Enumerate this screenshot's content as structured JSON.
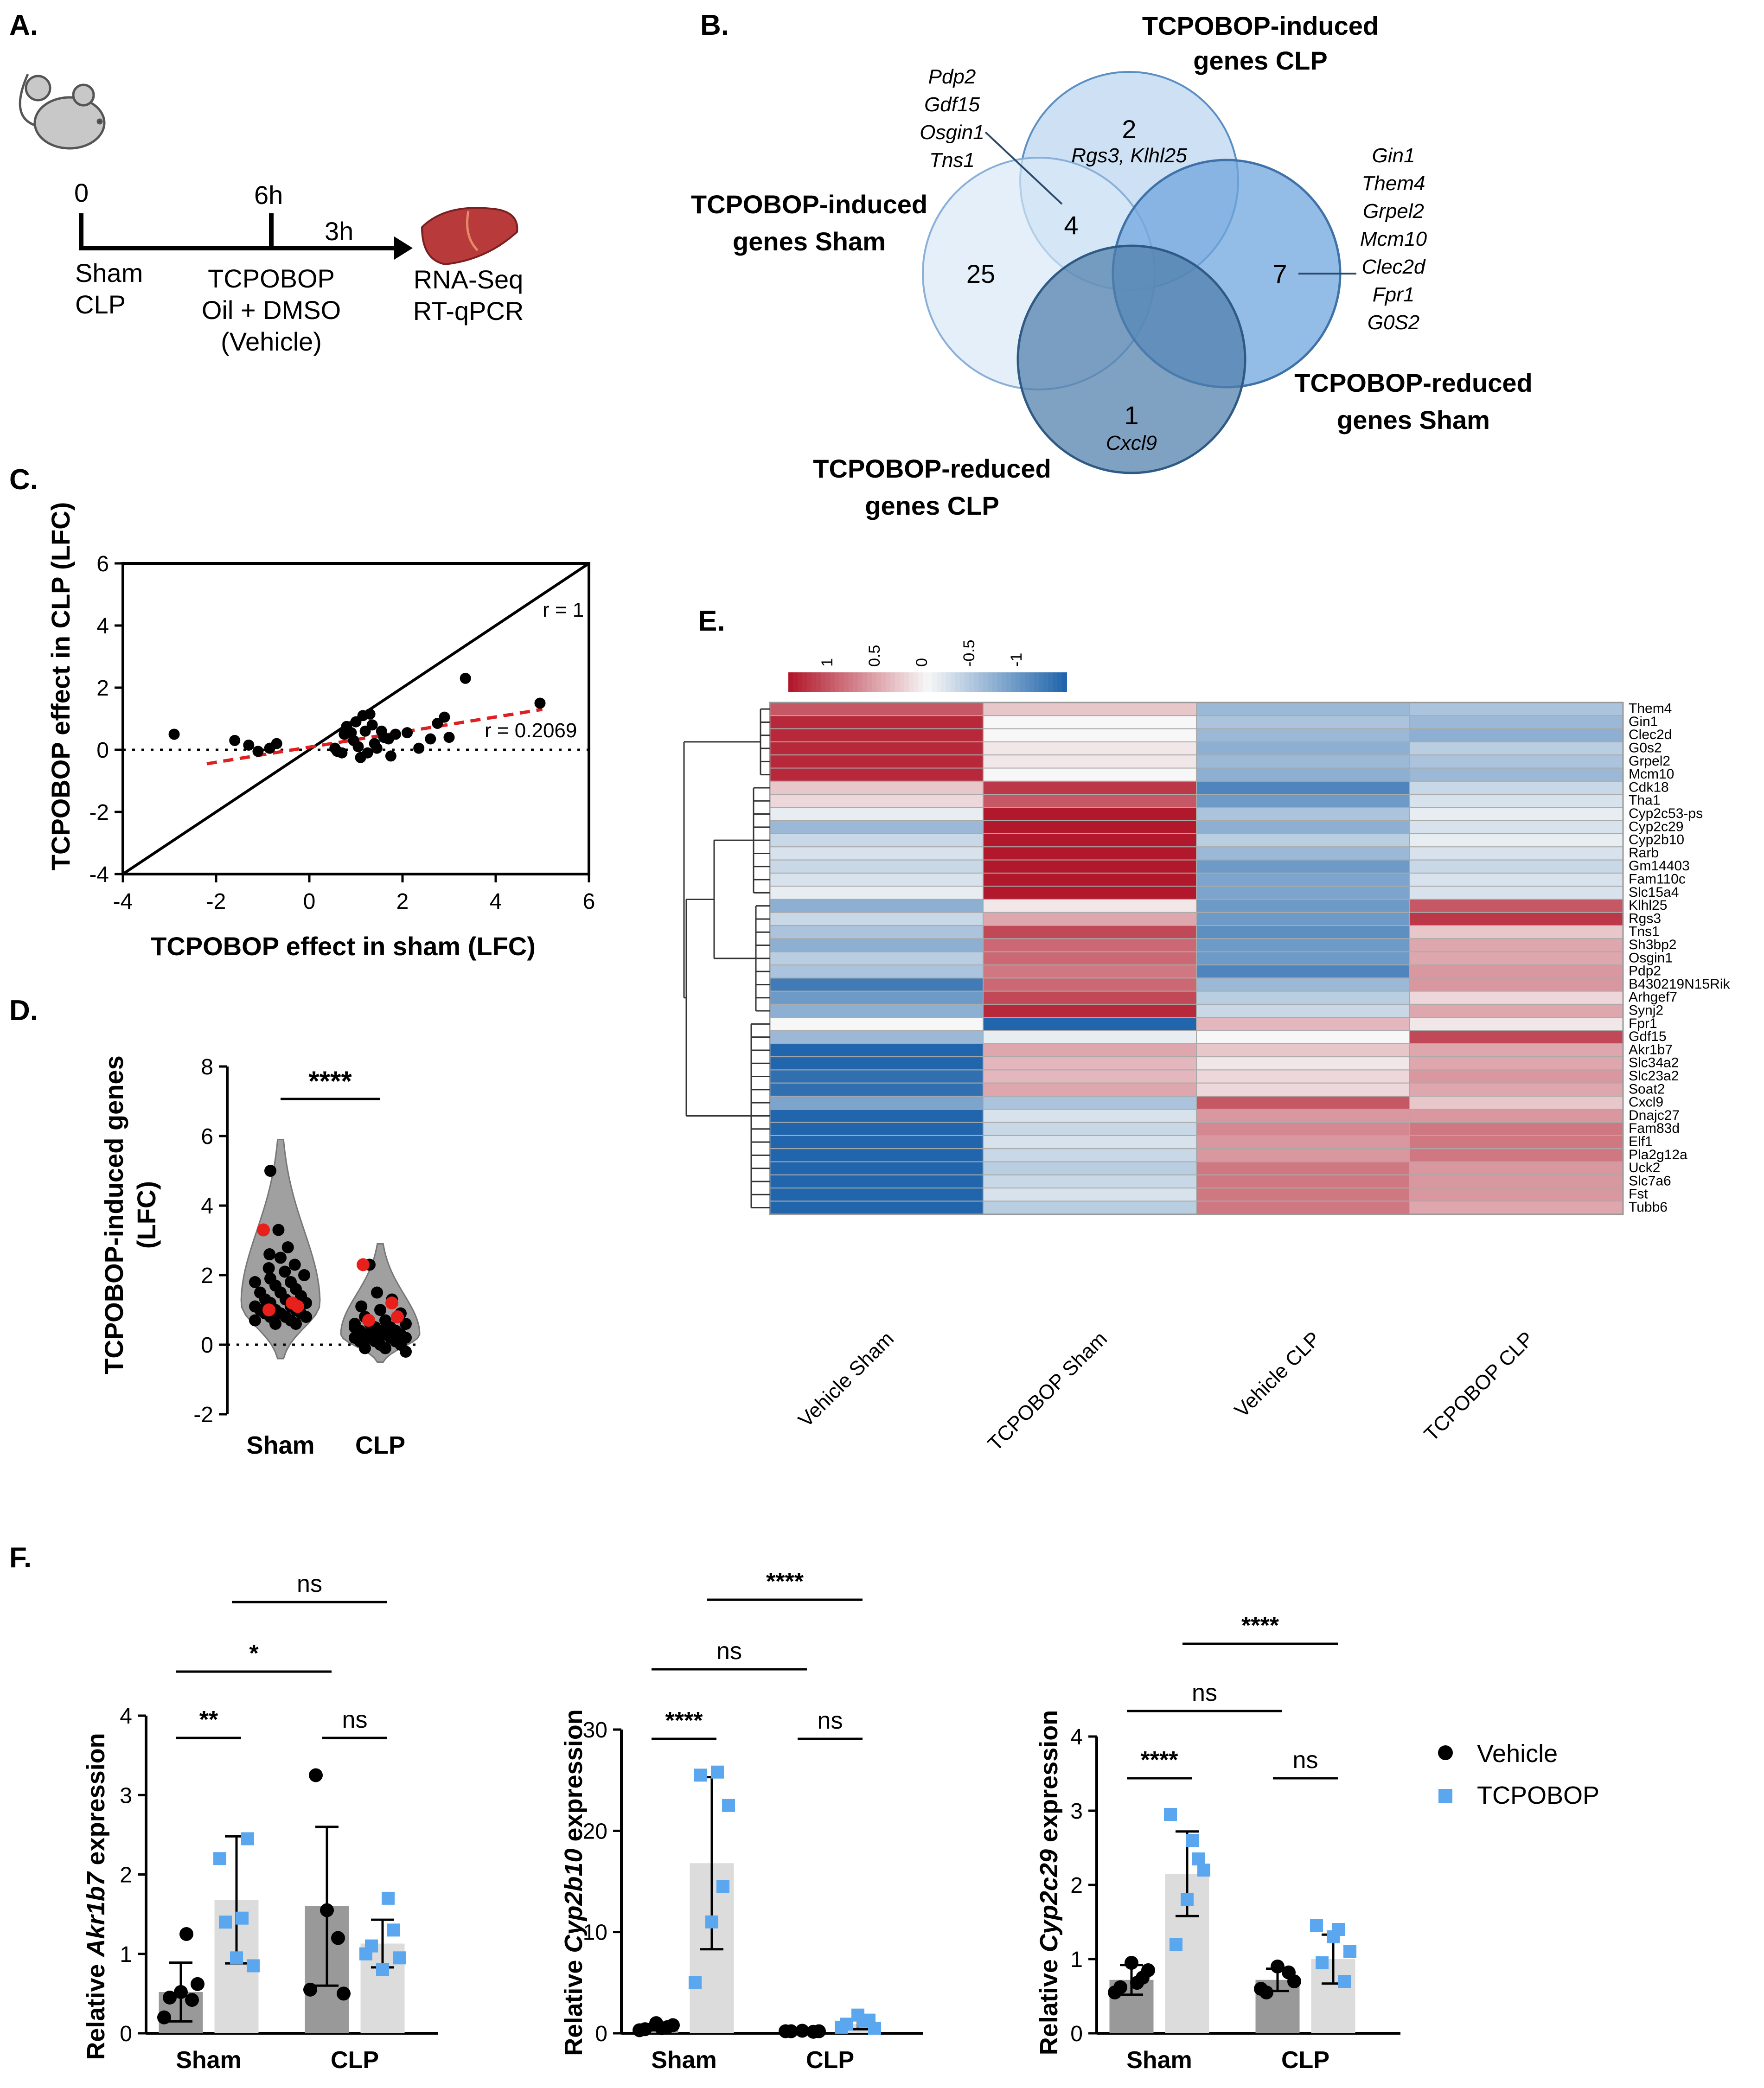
{
  "panels": {
    "A": {
      "letter": "A.",
      "t0": "0",
      "t6": "6h",
      "t3": "3h",
      "sham": "Sham",
      "clp": "CLP",
      "treat1": "TCPOBOP",
      "treat2": "Oil + DMSO",
      "treat3": "(Vehicle)",
      "out1": "RNA-Seq",
      "out2": "RT-qPCR"
    },
    "B": {
      "letter": "B.",
      "sets": [
        {
          "name": "TCPOBOP-induced genes CLP",
          "line1": "TCPOBOP-induced",
          "line2": "genes CLP"
        },
        {
          "name": "TCPOBOP-induced genes Sham",
          "line1": "TCPOBOP-induced",
          "line2": "genes Sham"
        },
        {
          "name": "TCPOBOP-reduced genes Sham",
          "line1": "TCPOBOP-reduced",
          "line2": "genes Sham"
        },
        {
          "name": "TCPOBOP-reduced genes CLP",
          "line1": "TCPOBOP-reduced",
          "line2": "genes CLP"
        }
      ],
      "counts": {
        "induced_clp_only": "2",
        "induced_both": "4",
        "induced_sham_only": "25",
        "reduced_sham": "7",
        "reduced_clp": "1"
      },
      "genes_clp_only": "Rgs3, Klhl25",
      "genes_both": [
        "Pdp2",
        "Gdf15",
        "Osgin1",
        "Tns1"
      ],
      "genes_reduced_sham": [
        "Gin1",
        "Them4",
        "Grpel2",
        "Mcm10",
        "Clec2d",
        "Fpr1",
        "G0S2"
      ],
      "genes_reduced_clp": "Cxcl9"
    },
    "C": {
      "letter": "C."
    },
    "D": {
      "letter": "D."
    },
    "E": {
      "letter": "E."
    },
    "F": {
      "letter": "F."
    }
  },
  "chart_data": [
    {
      "id": "C",
      "type": "scatter",
      "xlabel": "TCPOBOP effect in sham (LFC)",
      "ylabel": "TCPOBOP effect in CLP (LFC)",
      "xlim": [
        -4,
        6
      ],
      "ylim": [
        -4,
        6
      ],
      "xticks": [
        "-4",
        "-2",
        "0",
        "2",
        "4",
        "6"
      ],
      "yticks": [
        "-4",
        "-2",
        "0",
        "2",
        "4",
        "6"
      ],
      "identity_label": "r = 1",
      "fit_label": "r = 0.2069",
      "fit_line": [
        [
          -2.2,
          -0.45
        ],
        [
          5.0,
          1.3
        ]
      ],
      "points": [
        [
          -2.9,
          0.5
        ],
        [
          -1.6,
          0.3
        ],
        [
          -1.3,
          0.15
        ],
        [
          -1.1,
          -0.05
        ],
        [
          -0.85,
          0.05
        ],
        [
          -0.7,
          0.2
        ],
        [
          0.55,
          0.05
        ],
        [
          0.6,
          -0.05
        ],
        [
          0.7,
          -0.1
        ],
        [
          0.75,
          0.5
        ],
        [
          0.8,
          0.75
        ],
        [
          0.9,
          0.55
        ],
        [
          0.95,
          0.3
        ],
        [
          1.0,
          0.9
        ],
        [
          1.05,
          0.1
        ],
        [
          1.1,
          -0.25
        ],
        [
          1.15,
          1.1
        ],
        [
          1.2,
          0.6
        ],
        [
          1.25,
          -0.1
        ],
        [
          1.3,
          1.15
        ],
        [
          1.35,
          0.8
        ],
        [
          1.4,
          0.2
        ],
        [
          1.45,
          0.05
        ],
        [
          1.55,
          0.6
        ],
        [
          1.6,
          0.4
        ],
        [
          1.7,
          0.35
        ],
        [
          1.75,
          -0.2
        ],
        [
          1.85,
          0.5
        ],
        [
          2.1,
          0.55
        ],
        [
          2.35,
          0.05
        ],
        [
          2.6,
          0.35
        ],
        [
          2.75,
          0.85
        ],
        [
          2.9,
          1.05
        ],
        [
          3.0,
          0.4
        ],
        [
          3.35,
          2.3
        ],
        [
          4.95,
          1.5
        ]
      ]
    },
    {
      "id": "D",
      "type": "violin",
      "ylabel1": "TCPOBOP-induced genes",
      "ylabel2": "(LFC)",
      "ylim": [
        -2,
        8
      ],
      "yticks": [
        "-2",
        "0",
        "2",
        "4",
        "6",
        "8"
      ],
      "categories": [
        "Sham",
        "CLP"
      ],
      "significance": "****",
      "series": [
        {
          "name": "Sham",
          "values": [
            5.0,
            3.3,
            2.8,
            2.6,
            2.5,
            2.3,
            2.2,
            2.1,
            2.0,
            1.9,
            1.8,
            1.8,
            1.7,
            1.6,
            1.5,
            1.5,
            1.4,
            1.3,
            1.3,
            1.2,
            1.2,
            1.1,
            1.1,
            1.0,
            1.0,
            1.0,
            0.9,
            0.9,
            0.9,
            0.8,
            0.8,
            0.8,
            0.7,
            0.7,
            0.6,
            0.6
          ],
          "highlight": [
            3.3,
            1.2,
            1.0,
            1.1
          ]
        },
        {
          "name": "CLP",
          "values": [
            2.3,
            1.5,
            1.3,
            1.1,
            1.0,
            0.9,
            0.8,
            0.7,
            0.6,
            0.6,
            0.5,
            0.5,
            0.5,
            0.4,
            0.4,
            0.4,
            0.3,
            0.3,
            0.3,
            0.2,
            0.2,
            0.2,
            0.2,
            0.1,
            0.1,
            0.1,
            0.0,
            0.0,
            -0.1,
            -0.1,
            -0.2,
            0.3,
            0.4,
            0.6,
            0.2,
            0.1
          ],
          "highlight": [
            2.3,
            1.2,
            0.7,
            0.8
          ]
        }
      ]
    },
    {
      "id": "E",
      "type": "heatmap",
      "legend_ticks": [
        "1",
        "0.5",
        "0",
        "-0.5",
        "-1"
      ],
      "columns": [
        "Vehicle Sham",
        "TCPOBOP Sham",
        "Vehicle CLP",
        "TCPOBOP CLP"
      ],
      "rows": [
        "Them4",
        "Gin1",
        "Clec2d",
        "G0s2",
        "Grpel2",
        "Mcm10",
        "Cdk18",
        "Tha1",
        "Cyp2c53-ps",
        "Cyp2c29",
        "Cyp2b10",
        "Rarb",
        "Gm14403",
        "Fam110c",
        "Slc15a4",
        "Klhl25",
        "Rgs3",
        "Tns1",
        "Sh3bp2",
        "Osgin1",
        "Pdp2",
        "B430219N15Rik",
        "Arhgef7",
        "Synj2",
        "Fpr1",
        "Gdf15",
        "Akr1b7",
        "Slc34a2",
        "Slc23a2",
        "Soat2",
        "Cxcl9",
        "Dnajc27",
        "Fam83d",
        "Elf1",
        "Pla2g12a",
        "Uck2",
        "Slc7a6",
        "Fst",
        "Tubb6"
      ],
      "values": [
        [
          1.0,
          0.3,
          -0.6,
          -0.5
        ],
        [
          1.3,
          0.0,
          -0.5,
          -0.6
        ],
        [
          1.3,
          0.0,
          -0.6,
          -0.7
        ],
        [
          1.3,
          0.1,
          -0.7,
          -0.4
        ],
        [
          1.3,
          0.1,
          -0.6,
          -0.5
        ],
        [
          1.3,
          0.0,
          -0.7,
          -0.6
        ],
        [
          0.3,
          1.2,
          -1.1,
          -0.3
        ],
        [
          0.2,
          1.0,
          -0.9,
          -0.2
        ],
        [
          -0.1,
          1.4,
          -0.5,
          -0.1
        ],
        [
          -0.6,
          1.4,
          -0.7,
          -0.2
        ],
        [
          -0.3,
          1.4,
          -0.4,
          -0.1
        ],
        [
          -0.2,
          1.4,
          -0.6,
          -0.2
        ],
        [
          -0.3,
          1.4,
          -0.9,
          -0.3
        ],
        [
          -0.2,
          1.4,
          -0.8,
          -0.2
        ],
        [
          -0.1,
          1.4,
          -0.8,
          -0.2
        ],
        [
          -0.7,
          0.1,
          -0.9,
          1.0
        ],
        [
          -0.3,
          0.5,
          -0.9,
          1.2
        ],
        [
          -0.5,
          1.1,
          -1.0,
          0.3
        ],
        [
          -0.7,
          0.9,
          -0.9,
          0.5
        ],
        [
          -0.4,
          0.9,
          -0.9,
          0.5
        ],
        [
          -0.5,
          0.8,
          -1.1,
          0.6
        ],
        [
          -1.2,
          0.9,
          -0.6,
          0.6
        ],
        [
          -0.9,
          1.1,
          -0.4,
          0.2
        ],
        [
          -0.7,
          1.3,
          -0.3,
          0.5
        ],
        [
          0.0,
          -1.4,
          0.4,
          0.1
        ],
        [
          -0.6,
          -0.1,
          0.0,
          1.1
        ],
        [
          -1.4,
          0.5,
          0.3,
          0.5
        ],
        [
          -1.4,
          0.4,
          0.1,
          0.5
        ],
        [
          -1.3,
          0.4,
          0.2,
          0.6
        ],
        [
          -1.3,
          0.5,
          0.2,
          0.5
        ],
        [
          -0.8,
          -0.5,
          1.0,
          0.3
        ],
        [
          -1.4,
          -0.2,
          0.6,
          0.6
        ],
        [
          -1.4,
          -0.3,
          0.7,
          0.8
        ],
        [
          -1.4,
          -0.2,
          0.6,
          0.8
        ],
        [
          -1.4,
          -0.3,
          0.6,
          0.8
        ],
        [
          -1.4,
          -0.4,
          0.8,
          0.6
        ],
        [
          -1.4,
          -0.3,
          0.8,
          0.6
        ],
        [
          -1.4,
          -0.2,
          0.8,
          0.6
        ],
        [
          -1.4,
          -0.4,
          0.8,
          0.5
        ]
      ]
    },
    {
      "id": "F1",
      "type": "bar",
      "ylabel_pre": "Relative ",
      "ylabel_gene": "Akr1b7",
      "ylabel_post": " expression",
      "ylim": [
        0,
        4
      ],
      "yticks": [
        "0",
        "1",
        "2",
        "3",
        "4"
      ],
      "categories": [
        "Sham",
        "CLP"
      ],
      "series": [
        {
          "name": "Vehicle",
          "means": [
            0.52,
            1.6
          ],
          "sd": [
            0.37,
            1.0
          ],
          "points": [
            [
              0.2,
              0.42,
              0.52,
              0.45,
              0.62,
              1.25
            ],
            [
              0.55,
              1.2,
              1.55,
              3.25,
              0.5
            ]
          ]
        },
        {
          "name": "TCPOBOP",
          "means": [
            1.68,
            1.13
          ],
          "sd": [
            0.8,
            0.3
          ],
          "points": [
            [
              2.2,
              2.45,
              0.95,
              1.4,
              0.85,
              1.45
            ],
            [
              1.0,
              1.3,
              0.8,
              1.1,
              0.95,
              1.7
            ]
          ]
        }
      ],
      "comparisons": [
        {
          "label": "**",
          "level": 1
        },
        {
          "label": "ns",
          "level": 1
        },
        {
          "label": "*",
          "level": 2
        },
        {
          "label": "ns",
          "level": 3
        }
      ]
    },
    {
      "id": "F2",
      "type": "bar",
      "ylabel_pre": "Relative ",
      "ylabel_gene": "Cyp2b10",
      "ylabel_post": " expression",
      "ylim": [
        0,
        30
      ],
      "yticks": [
        "0",
        "10",
        "20",
        "30"
      ],
      "categories": [
        "Sham",
        "CLP"
      ],
      "series": [
        {
          "name": "Vehicle",
          "means": [
            0.6,
            0.2
          ],
          "sd": [
            0.3,
            0.05
          ],
          "points": [
            [
              0.3,
              0.6,
              1.0,
              0.4,
              0.8,
              0.5
            ],
            [
              0.2,
              0.15,
              0.25,
              0.2,
              0.2
            ]
          ]
        },
        {
          "name": "TCPOBOP",
          "means": [
            16.8,
            0.9
          ],
          "sd": [
            8.5,
            0.5
          ],
          "points": [
            [
              5.0,
              14.5,
              11.0,
              25.5,
              22.5,
              25.8
            ],
            [
              0.6,
              1.3,
              1.8,
              0.9,
              0.5,
              1.2
            ]
          ]
        }
      ],
      "comparisons": [
        {
          "label": "****",
          "level": 1
        },
        {
          "label": "ns",
          "level": 1
        },
        {
          "label": "ns",
          "level": 2
        },
        {
          "label": "****",
          "level": 3
        }
      ]
    },
    {
      "id": "F3",
      "type": "bar",
      "ylabel_pre": "Relative ",
      "ylabel_gene": "Cyp2c29",
      "ylabel_post": " expression",
      "ylim": [
        0,
        4
      ],
      "yticks": [
        "0",
        "1",
        "2",
        "3",
        "4"
      ],
      "categories": [
        "Sham",
        "CLP"
      ],
      "series": [
        {
          "name": "Vehicle",
          "means": [
            0.72,
            0.72
          ],
          "sd": [
            0.2,
            0.15
          ],
          "points": [
            [
              0.55,
              0.75,
              0.95,
              0.62,
              0.85,
              0.68
            ],
            [
              0.6,
              0.82,
              0.9,
              0.55,
              0.7
            ]
          ]
        },
        {
          "name": "TCPOBOP",
          "means": [
            2.15,
            1.0
          ],
          "sd": [
            0.57,
            0.33
          ],
          "points": [
            [
              2.95,
              2.35,
              1.8,
              1.2,
              2.2,
              2.6
            ],
            [
              1.45,
              0.7,
              1.3,
              0.95,
              1.1,
              1.4
            ]
          ]
        }
      ],
      "comparisons": [
        {
          "label": "****",
          "level": 1
        },
        {
          "label": "ns",
          "level": 1
        },
        {
          "label": "ns",
          "level": 2
        },
        {
          "label": "****",
          "level": 3
        }
      ]
    }
  ],
  "legend": {
    "vehicle": "Vehicle",
    "tcpobop": "TCPOBOP"
  },
  "colors": {
    "black": "#000000",
    "red_point": "#e8201c",
    "blue_point": "#5aa7ef",
    "dark_bar": "#999999",
    "light_bar": "#dcdcdc",
    "violin": "#a0a0a0",
    "fit_line": "#e02020",
    "heat_pos": "#b2182b",
    "heat_neg": "#2166ac",
    "heat_mid": "#f7f7f7",
    "venn_a": "#d7e6f5",
    "venn_b": "#a7c8ea",
    "venn_c": "#6da6e0",
    "venn_d": "#4f84b6",
    "venn_stroke": "#5b8fc4"
  }
}
